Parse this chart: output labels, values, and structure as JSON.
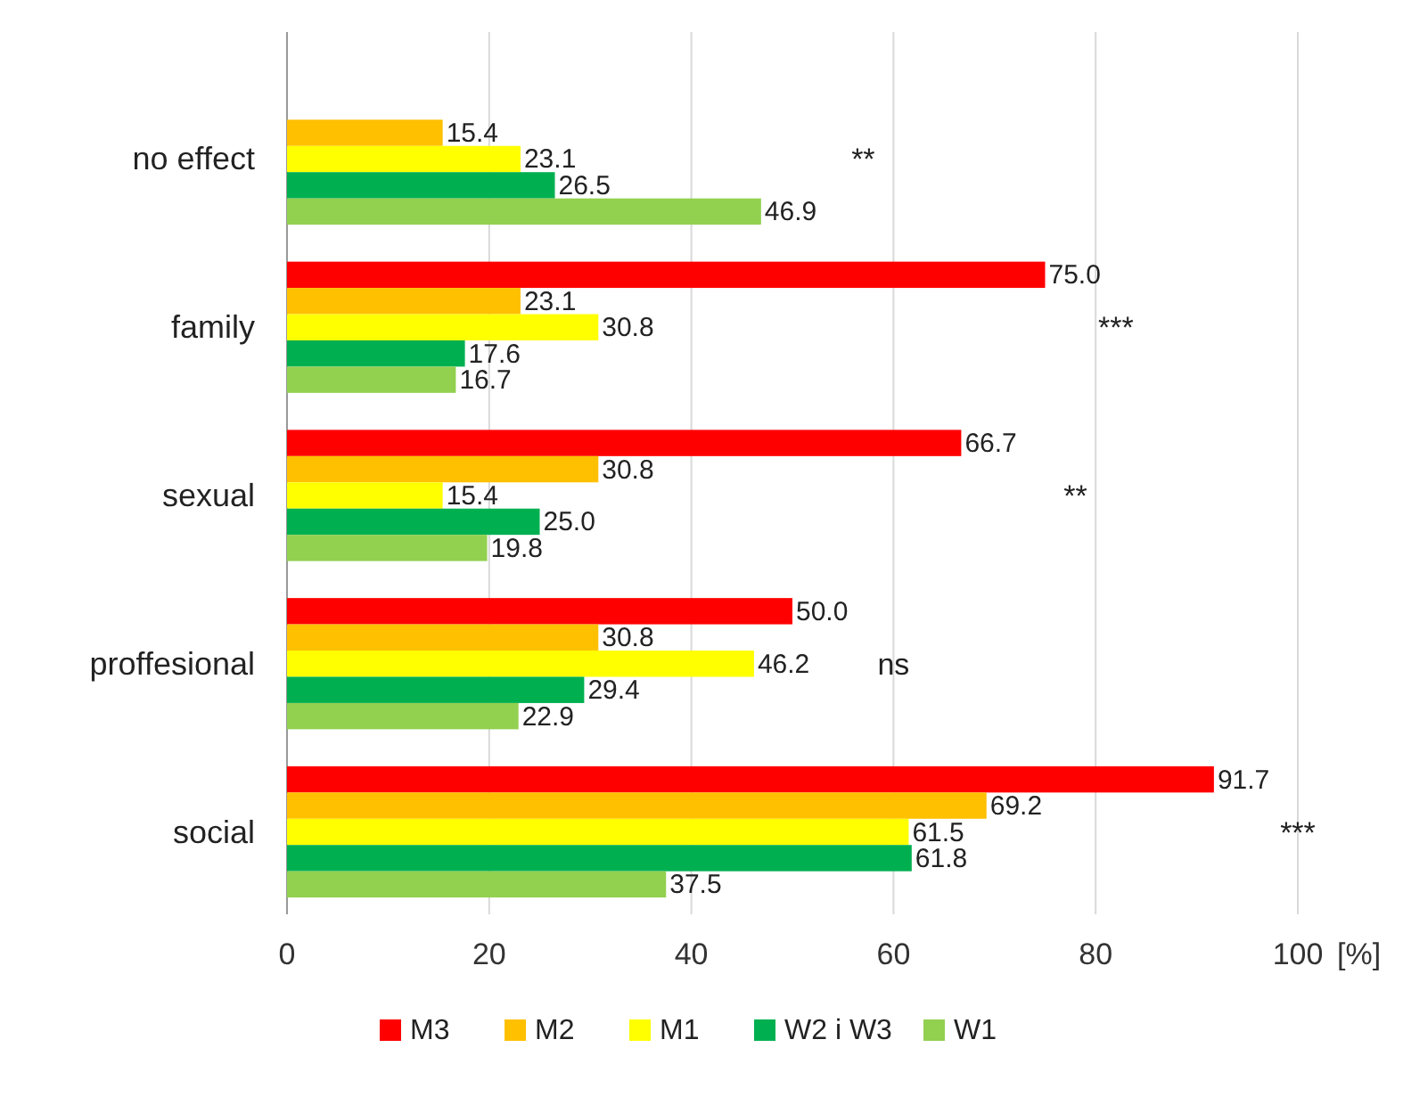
{
  "chart_data": {
    "type": "bar",
    "orientation": "horizontal",
    "xlabel": "[%]",
    "categories": [
      "no effect",
      "family",
      "sexual",
      "proffesional",
      "social"
    ],
    "series": [
      {
        "name": "M3",
        "color": "#ff0000",
        "values": [
          null,
          75.0,
          66.7,
          50.0,
          91.7
        ],
        "value_labels": [
          null,
          "75.0",
          "66.7",
          "50.0",
          "91.7"
        ]
      },
      {
        "name": "M2",
        "color": "#ffc000",
        "values": [
          15.4,
          23.1,
          30.8,
          30.8,
          69.2
        ],
        "value_labels": [
          "15.4",
          "23.1",
          "30.8",
          "30.8",
          "69.2"
        ]
      },
      {
        "name": "M1",
        "color": "#ffff00",
        "values": [
          23.1,
          30.8,
          15.4,
          46.2,
          61.5
        ],
        "value_labels": [
          "23.1",
          "30.8",
          "15.4",
          "46.2",
          "61.5"
        ]
      },
      {
        "name": "W2 i W3",
        "color": "#00b050",
        "values": [
          26.5,
          17.6,
          25.0,
          29.4,
          61.8
        ],
        "value_labels": [
          "26.5",
          "17.6",
          "25.0",
          "29.4",
          "61.8"
        ]
      },
      {
        "name": "W1",
        "color": "#92d050",
        "values": [
          46.9,
          16.7,
          19.8,
          22.9,
          37.5
        ],
        "value_labels": [
          "46.9",
          "16.7",
          "19.8",
          "22.9",
          "37.5"
        ]
      }
    ],
    "xlim": [
      0,
      100
    ],
    "xticks": [
      0,
      20,
      40,
      60,
      80,
      100
    ],
    "grid": "x",
    "legend": "bottom",
    "annotations": [
      "**",
      "***",
      "**",
      "ns",
      "***"
    ]
  }
}
